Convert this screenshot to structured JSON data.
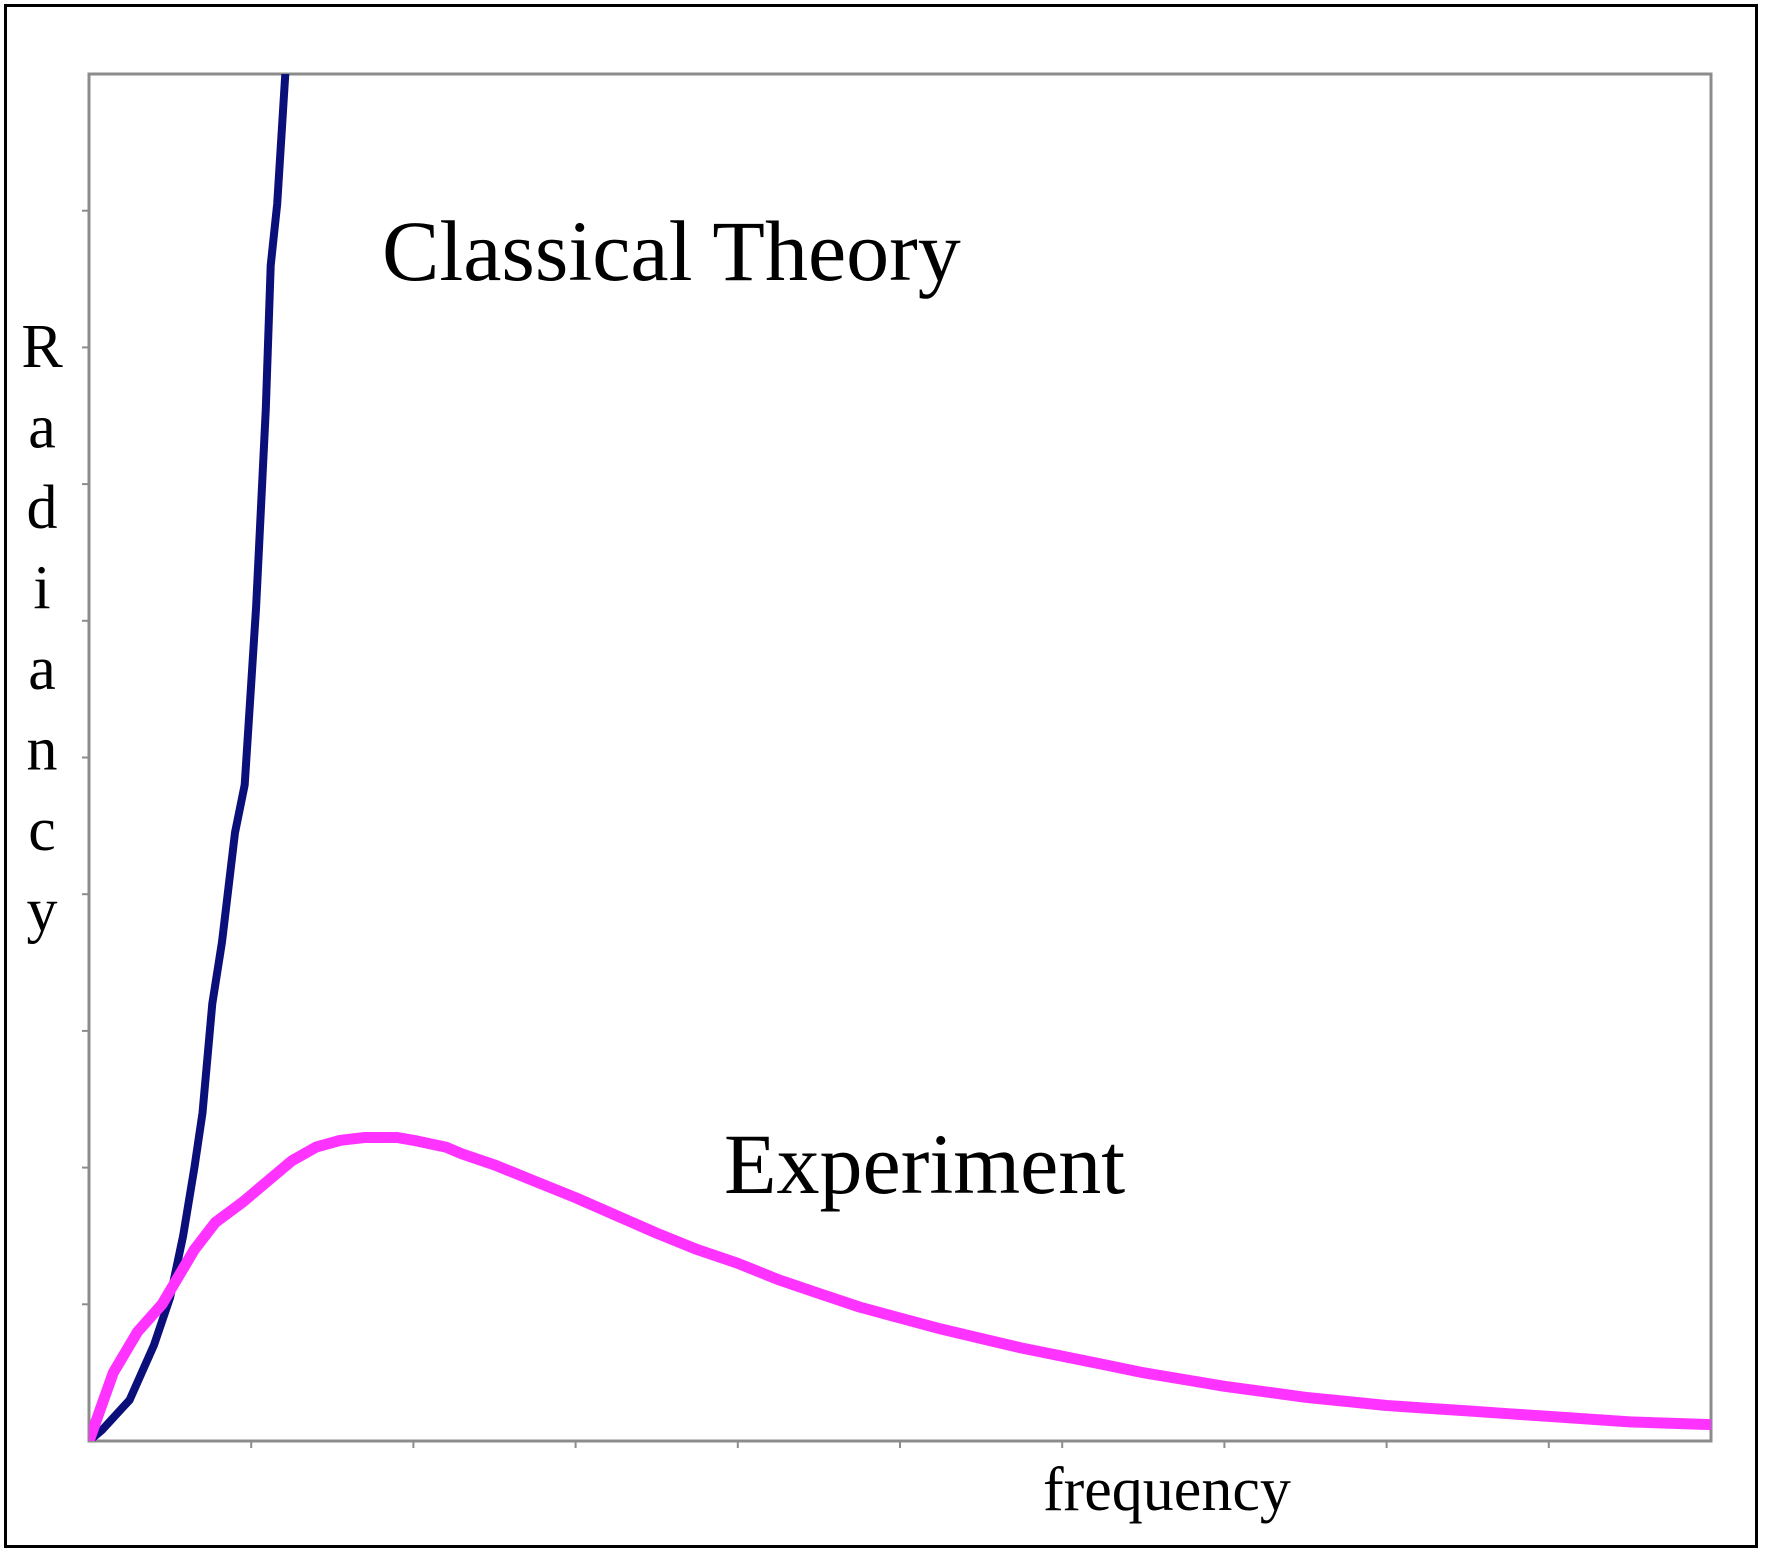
{
  "chart_data": {
    "type": "line",
    "title": "",
    "xlabel": "frequency",
    "ylabel": "Radiancy",
    "xlim": [
      0,
      100
    ],
    "ylim": [
      0,
      100
    ],
    "grid": false,
    "legend": "none",
    "annotations": [
      "Classical Theory",
      "Experiment"
    ],
    "series": [
      {
        "name": "Classical Theory",
        "color": "#0b0f7a",
        "x": [
          0,
          0.8,
          2.5,
          4,
          5,
          5.8,
          6.5,
          7,
          7.6,
          8.2,
          9,
          9.6,
          10.3,
          10.9,
          11.2,
          11.6,
          12.1
        ],
        "y": [
          0,
          0.8,
          3,
          7,
          10.5,
          15,
          20,
          24,
          32,
          36.5,
          44.5,
          48,
          61,
          75.5,
          86,
          90.5,
          100
        ]
      },
      {
        "name": "Experiment",
        "color": "#ff33ff",
        "x": [
          0,
          1.5,
          3,
          4.5,
          5.5,
          6.5,
          7.8,
          9.5,
          11,
          12.5,
          14,
          15.5,
          17,
          19,
          20,
          22,
          23,
          25,
          27.5,
          30,
          32.5,
          35,
          37.5,
          40,
          42.5,
          45,
          47.5,
          50,
          52.5,
          55,
          57.5,
          60,
          62.5,
          65,
          67.5,
          70,
          72.5,
          75,
          77.5,
          80,
          82.5,
          85,
          87.5,
          90,
          92.5,
          95,
          97.5,
          100
        ],
        "y": [
          0,
          5,
          8,
          10,
          12,
          14,
          16,
          17.5,
          19,
          20.5,
          21.5,
          22,
          22.2,
          22.2,
          22,
          21.5,
          21,
          20.2,
          19,
          17.8,
          16.5,
          15.2,
          14,
          13,
          11.8,
          10.8,
          9.8,
          9,
          8.2,
          7.5,
          6.8,
          6.2,
          5.6,
          5,
          4.5,
          4,
          3.6,
          3.2,
          2.9,
          2.6,
          2.4,
          2.2,
          2,
          1.8,
          1.6,
          1.4,
          1.3,
          1.2
        ]
      }
    ]
  }
}
